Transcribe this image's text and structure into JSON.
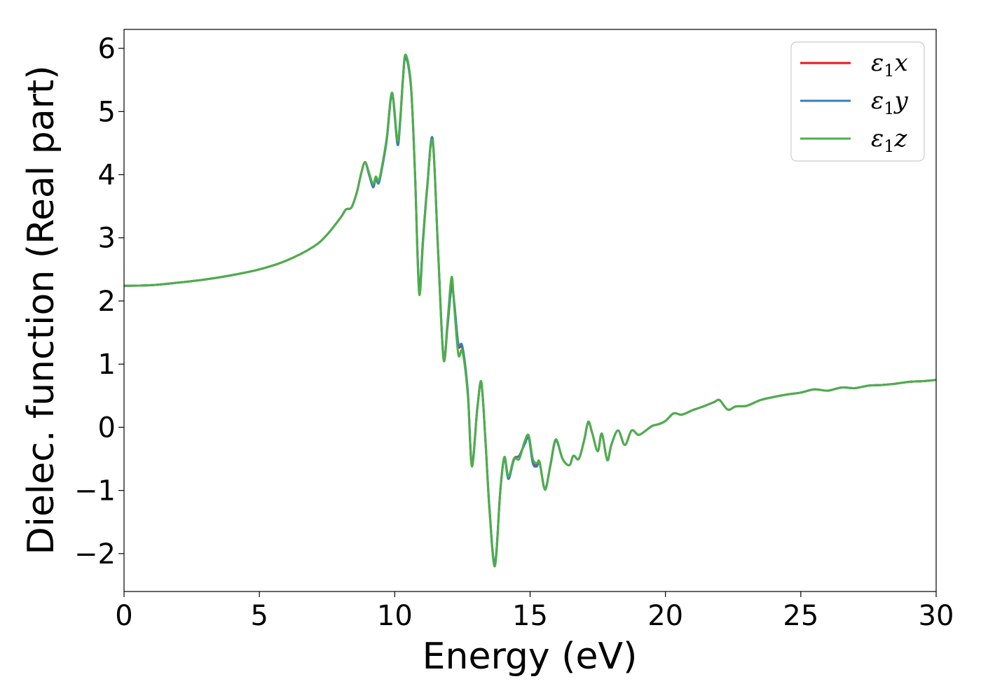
{
  "chart_data": {
    "type": "line",
    "title": "",
    "xlabel": "Energy (eV)",
    "ylabel": "Dielec. function (Real part)",
    "xlim": [
      0,
      30
    ],
    "ylim": [
      -2.6,
      6.3
    ],
    "xticks": [
      0,
      5,
      10,
      15,
      20,
      25,
      30
    ],
    "xtick_labels": [
      "0",
      "5",
      "10",
      "15",
      "20",
      "25",
      "30"
    ],
    "yticks": [
      -2,
      -1,
      0,
      1,
      2,
      3,
      4,
      5,
      6
    ],
    "ytick_labels": [
      "−2",
      "−1",
      "0",
      "1",
      "2",
      "3",
      "4",
      "5",
      "6"
    ],
    "grid": false,
    "legend_position": "top-right",
    "series": [
      {
        "name": "ε₁x",
        "legend_base": "ε",
        "legend_sub": "1",
        "legend_tail": "x",
        "color": "#e41a1c",
        "x": [
          0,
          1,
          2,
          3,
          4,
          5,
          6,
          7,
          7.5,
          8,
          8.2,
          8.4,
          8.6,
          8.75,
          8.9,
          9.05,
          9.2,
          9.3,
          9.4,
          9.5,
          9.7,
          9.9,
          10.1,
          10.2,
          10.3,
          10.4,
          10.6,
          10.75,
          10.9,
          11.05,
          11.2,
          11.4,
          11.6,
          11.8,
          11.95,
          12.1,
          12.2,
          12.35,
          12.5,
          12.7,
          12.85,
          13.05,
          13.2,
          13.35,
          13.5,
          13.7,
          13.9,
          14.05,
          14.2,
          14.4,
          14.6,
          14.8,
          14.95,
          15.1,
          15.25,
          15.35,
          15.55,
          15.75,
          15.95,
          16.2,
          16.45,
          16.6,
          16.8,
          17.0,
          17.15,
          17.3,
          17.5,
          17.65,
          17.85,
          18.0,
          18.25,
          18.5,
          18.75,
          19.0,
          19.25,
          19.5,
          19.75,
          20.0,
          20.3,
          20.6,
          21.0,
          21.4,
          21.8,
          22.0,
          22.3,
          22.6,
          23.0,
          23.5,
          24.0,
          24.5,
          25.0,
          25.5,
          26.0,
          26.5,
          27.0,
          27.5,
          28.0,
          28.5,
          29.0,
          29.5,
          30
        ],
        "y": [
          2.24,
          2.25,
          2.29,
          2.34,
          2.41,
          2.5,
          2.64,
          2.86,
          3.05,
          3.32,
          3.45,
          3.48,
          3.72,
          4.0,
          4.2,
          4.02,
          3.82,
          3.95,
          3.88,
          4.05,
          4.55,
          5.28,
          4.5,
          4.85,
          5.5,
          5.87,
          5.4,
          4.0,
          2.2,
          3.0,
          3.8,
          4.55,
          2.8,
          1.1,
          1.6,
          2.25,
          1.95,
          1.3,
          1.25,
          0.55,
          -0.6,
          0.3,
          0.7,
          -0.2,
          -1.3,
          -2.18,
          -1.0,
          -0.48,
          -0.8,
          -0.5,
          -0.45,
          -0.25,
          -0.15,
          -0.55,
          -0.6,
          -0.55,
          -0.98,
          -0.6,
          -0.2,
          -0.5,
          -0.6,
          -0.45,
          -0.5,
          -0.2,
          0.08,
          -0.1,
          -0.38,
          -0.1,
          -0.52,
          -0.28,
          -0.05,
          -0.28,
          -0.05,
          -0.12,
          -0.06,
          0.02,
          0.05,
          0.1,
          0.22,
          0.2,
          0.27,
          0.33,
          0.4,
          0.43,
          0.28,
          0.33,
          0.34,
          0.43,
          0.48,
          0.52,
          0.55,
          0.6,
          0.58,
          0.63,
          0.62,
          0.66,
          0.67,
          0.69,
          0.72,
          0.73,
          0.75
        ]
      },
      {
        "name": "ε₁y",
        "legend_base": "ε",
        "legend_sub": "1",
        "legend_tail": "y",
        "color": "#377eb8",
        "x": [
          0,
          1,
          2,
          3,
          4,
          5,
          6,
          7,
          7.5,
          8,
          8.2,
          8.4,
          8.6,
          8.75,
          8.9,
          9.05,
          9.2,
          9.3,
          9.4,
          9.5,
          9.7,
          9.9,
          10.1,
          10.2,
          10.3,
          10.4,
          10.6,
          10.75,
          10.9,
          11.05,
          11.2,
          11.4,
          11.6,
          11.8,
          11.95,
          12.1,
          12.2,
          12.35,
          12.5,
          12.7,
          12.85,
          13.05,
          13.2,
          13.35,
          13.5,
          13.7,
          13.9,
          14.05,
          14.2,
          14.4,
          14.6,
          14.8,
          14.95,
          15.1,
          15.25,
          15.35,
          15.55,
          15.75,
          15.95,
          16.2,
          16.45,
          16.6,
          16.8,
          17.0,
          17.15,
          17.3,
          17.5,
          17.65,
          17.85,
          18.0,
          18.25,
          18.5,
          18.75,
          19.0,
          19.25,
          19.5,
          19.75,
          20.0,
          20.3,
          20.6,
          21.0,
          21.4,
          21.8,
          22.0,
          22.3,
          22.6,
          23.0,
          23.5,
          24.0,
          24.5,
          25.0,
          25.5,
          26.0,
          26.5,
          27.0,
          27.5,
          28.0,
          28.5,
          29.0,
          29.5,
          30
        ],
        "y": [
          2.24,
          2.25,
          2.29,
          2.34,
          2.41,
          2.5,
          2.64,
          2.86,
          3.05,
          3.32,
          3.45,
          3.48,
          3.72,
          4.0,
          4.19,
          4.0,
          3.8,
          3.93,
          3.86,
          4.03,
          4.53,
          5.26,
          4.48,
          4.83,
          5.48,
          5.86,
          5.38,
          4.0,
          2.22,
          3.02,
          3.82,
          4.57,
          2.82,
          1.12,
          1.62,
          2.22,
          1.97,
          1.32,
          1.28,
          0.56,
          -0.58,
          0.3,
          0.68,
          -0.2,
          -1.28,
          -2.16,
          -1.0,
          -0.49,
          -0.82,
          -0.52,
          -0.45,
          -0.27,
          -0.17,
          -0.57,
          -0.62,
          -0.56,
          -0.97,
          -0.61,
          -0.21,
          -0.5,
          -0.6,
          -0.45,
          -0.5,
          -0.2,
          0.08,
          -0.1,
          -0.38,
          -0.1,
          -0.52,
          -0.28,
          -0.05,
          -0.28,
          -0.05,
          -0.12,
          -0.06,
          0.02,
          0.05,
          0.1,
          0.22,
          0.2,
          0.27,
          0.33,
          0.4,
          0.43,
          0.28,
          0.33,
          0.34,
          0.43,
          0.48,
          0.52,
          0.55,
          0.6,
          0.58,
          0.63,
          0.62,
          0.66,
          0.67,
          0.69,
          0.72,
          0.73,
          0.75
        ]
      },
      {
        "name": "ε₁z",
        "legend_base": "ε",
        "legend_sub": "1",
        "legend_tail": "z",
        "color": "#4daf4a",
        "x": [
          0,
          1,
          2,
          3,
          4,
          5,
          6,
          7,
          7.5,
          8,
          8.2,
          8.4,
          8.6,
          8.75,
          8.9,
          9.05,
          9.2,
          9.3,
          9.4,
          9.5,
          9.7,
          9.9,
          10.1,
          10.2,
          10.3,
          10.4,
          10.6,
          10.75,
          10.9,
          11.05,
          11.2,
          11.4,
          11.6,
          11.8,
          11.95,
          12.1,
          12.2,
          12.35,
          12.5,
          12.7,
          12.85,
          13.05,
          13.2,
          13.35,
          13.5,
          13.7,
          13.9,
          14.05,
          14.2,
          14.4,
          14.6,
          14.8,
          14.95,
          15.1,
          15.25,
          15.35,
          15.55,
          15.75,
          15.95,
          16.2,
          16.45,
          16.6,
          16.8,
          17.0,
          17.15,
          17.3,
          17.5,
          17.65,
          17.85,
          18.0,
          18.25,
          18.5,
          18.75,
          19.0,
          19.25,
          19.5,
          19.75,
          20.0,
          20.3,
          20.6,
          21.0,
          21.4,
          21.8,
          22.0,
          22.3,
          22.6,
          23.0,
          23.5,
          24.0,
          24.5,
          25.0,
          25.5,
          26.0,
          26.5,
          27.0,
          27.5,
          28.0,
          28.5,
          29.0,
          29.5,
          30
        ],
        "y": [
          2.24,
          2.25,
          2.29,
          2.34,
          2.41,
          2.5,
          2.64,
          2.86,
          3.05,
          3.32,
          3.45,
          3.48,
          3.72,
          4.0,
          4.2,
          4.03,
          3.85,
          3.97,
          3.9,
          4.07,
          4.57,
          5.3,
          4.55,
          4.88,
          5.52,
          5.9,
          5.42,
          4.0,
          2.12,
          2.95,
          3.78,
          4.53,
          2.78,
          1.08,
          1.68,
          2.38,
          1.9,
          1.15,
          1.2,
          0.5,
          -0.62,
          0.28,
          0.72,
          -0.22,
          -1.32,
          -2.2,
          -1.02,
          -0.47,
          -0.78,
          -0.5,
          -0.5,
          -0.22,
          -0.13,
          -0.5,
          -0.57,
          -0.55,
          -0.99,
          -0.59,
          -0.19,
          -0.5,
          -0.6,
          -0.45,
          -0.5,
          -0.2,
          0.09,
          -0.1,
          -0.38,
          -0.1,
          -0.52,
          -0.28,
          -0.05,
          -0.28,
          -0.05,
          -0.12,
          -0.06,
          0.02,
          0.05,
          0.1,
          0.22,
          0.2,
          0.27,
          0.33,
          0.4,
          0.43,
          0.28,
          0.33,
          0.34,
          0.43,
          0.48,
          0.52,
          0.55,
          0.6,
          0.58,
          0.63,
          0.62,
          0.66,
          0.67,
          0.69,
          0.72,
          0.73,
          0.75
        ]
      }
    ]
  }
}
